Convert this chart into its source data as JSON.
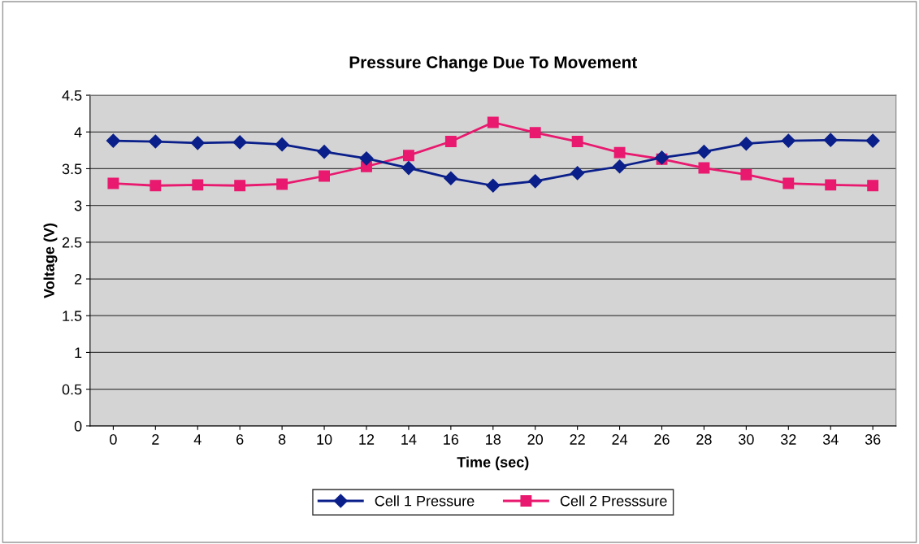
{
  "chart_data": {
    "type": "line",
    "title": "Pressure Change Due To Movement",
    "xlabel": "Time (sec)",
    "ylabel": "Voltage (V)",
    "categories": [
      "0",
      "2",
      "4",
      "6",
      "8",
      "10",
      "12",
      "14",
      "16",
      "18",
      "20",
      "22",
      "24",
      "26",
      "28",
      "30",
      "32",
      "34",
      "36"
    ],
    "series": [
      {
        "name": "Cell 1 Pressure",
        "color": "#0a1f8a",
        "marker": "diamond",
        "values": [
          3.88,
          3.87,
          3.85,
          3.86,
          3.83,
          3.73,
          3.64,
          3.51,
          3.37,
          3.27,
          3.33,
          3.44,
          3.53,
          3.65,
          3.73,
          3.84,
          3.88,
          3.89,
          3.88
        ]
      },
      {
        "name": "Cell 2 Presssure",
        "color": "#e8196e",
        "marker": "square",
        "values": [
          3.3,
          3.27,
          3.28,
          3.27,
          3.29,
          3.4,
          3.53,
          3.68,
          3.87,
          4.13,
          3.99,
          3.87,
          3.72,
          3.63,
          3.51,
          3.42,
          3.3,
          3.28,
          3.27
        ]
      }
    ],
    "ylim": [
      0,
      4.5
    ],
    "yticks": [
      0,
      0.5,
      1,
      1.5,
      2,
      2.5,
      3,
      3.5,
      4,
      4.5
    ],
    "grid": "y",
    "legend": "bottom",
    "line_style": "solid"
  }
}
